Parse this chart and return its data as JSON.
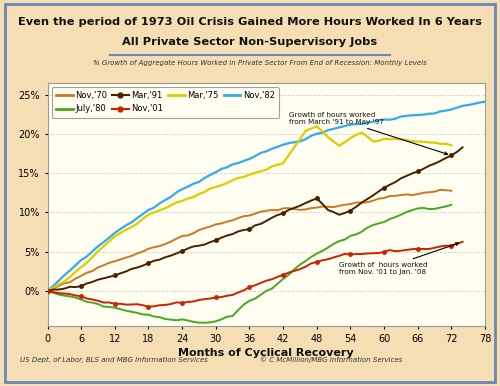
{
  "title_line1": "Even the period of 1973 Oil Crisis Gained More Hours Worked In 6 Years",
  "title_line2": "All Private Sector Non-Supervisory Jobs",
  "subtitle": "% Growth of Aggregate Hours Worked in Private Sector From End of Recession: Monthly Levels",
  "xlabel": "Months of Cyclical Recovery",
  "footnote_left": "US Dept. of Labor, BLS and MBG Information Services",
  "footnote_right": "© C McMillion/MBG Information Services",
  "bg_color": "#f5deb3",
  "plot_bg_color": "#fffef0",
  "border_color": "#6688bb",
  "xlim": [
    0,
    78
  ],
  "ylim": [
    -0.045,
    0.265
  ],
  "xticks": [
    0,
    6,
    12,
    18,
    24,
    30,
    36,
    42,
    48,
    54,
    60,
    66,
    72,
    78
  ],
  "yticks": [
    0.0,
    0.05,
    0.1,
    0.15,
    0.2,
    0.25
  ],
  "ytick_labels": [
    "0%",
    "5%",
    "10%",
    "15%",
    "20%",
    "25%"
  ]
}
